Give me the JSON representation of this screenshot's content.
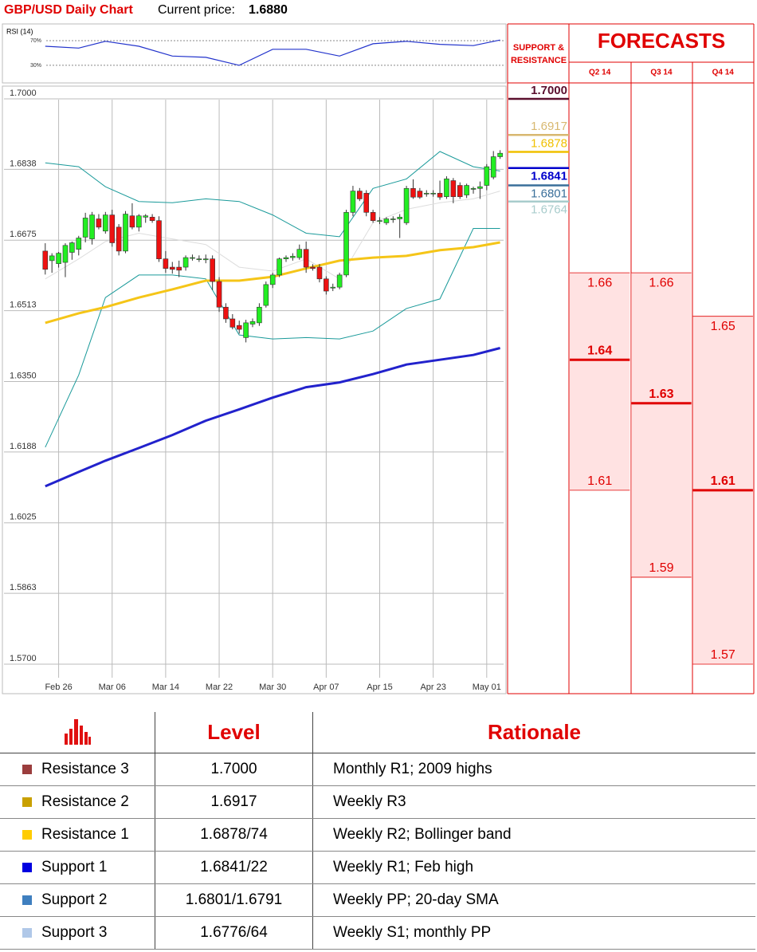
{
  "chart_data": [
    {
      "type": "candlestick",
      "title": "GBP/USD Daily Chart",
      "subtitle": "Current price:",
      "current_price": "1.6880",
      "x": [
        "Feb 24",
        "Feb 25",
        "Feb 26",
        "Feb 27",
        "Feb 28",
        "Mar 01",
        "Mar 02",
        "Mar 03",
        "Mar 04",
        "Mar 05",
        "Mar 06",
        "Mar 07",
        "Mar 08",
        "Mar 09",
        "Mar 10",
        "Mar 11",
        "Mar 12",
        "Mar 13",
        "Mar 14",
        "Mar 15",
        "Mar 16",
        "Mar 17",
        "Mar 18",
        "Mar 19",
        "Mar 20",
        "Mar 21",
        "Mar 22",
        "Mar 23",
        "Mar 24",
        "Mar 25",
        "Mar 26",
        "Mar 27",
        "Mar 28",
        "Mar 29",
        "Mar 30",
        "Mar 31",
        "Apr 01",
        "Apr 02",
        "Apr 03",
        "Apr 04",
        "Apr 05",
        "Apr 06",
        "Apr 07",
        "Apr 08",
        "Apr 09",
        "Apr 10",
        "Apr 11",
        "Apr 12",
        "Apr 13",
        "Apr 14",
        "Apr 15",
        "Apr 16",
        "Apr 17",
        "Apr 18",
        "Apr 19",
        "Apr 20",
        "Apr 21",
        "Apr 22",
        "Apr 23",
        "Apr 24",
        "Apr 25",
        "Apr 26",
        "Apr 27",
        "Apr 28",
        "Apr 29",
        "Apr 30",
        "May 01",
        "May 02",
        "May 03"
      ],
      "open": [
        1.665,
        1.6628,
        1.6621,
        1.6624,
        1.6647,
        1.6654,
        1.6682,
        1.6678,
        1.6724,
        1.6696,
        1.6733,
        1.6705,
        1.665,
        1.6731,
        1.6705,
        1.6728,
        1.6728,
        1.672,
        1.6632,
        1.6613,
        1.6613,
        1.6613,
        1.6635,
        1.6632,
        1.663,
        1.6632,
        1.658,
        1.6521,
        1.6494,
        1.6479,
        1.6451,
        1.6482,
        1.6485,
        1.6525,
        1.6573,
        1.6595,
        1.6632,
        1.6635,
        1.6635,
        1.6654,
        1.6613,
        1.6613,
        1.6586,
        1.6565,
        1.6567,
        1.6595,
        1.6739,
        1.6788,
        1.6783,
        1.6739,
        1.672,
        1.6715,
        1.6724,
        1.6724,
        1.6715,
        1.6794,
        1.6788,
        1.6783,
        1.6783,
        1.6783,
        1.6775,
        1.6812,
        1.6801,
        1.6779,
        1.6792,
        1.6794,
        1.6801,
        1.682,
        1.6867
      ],
      "high": [
        1.6668,
        1.6645,
        1.6648,
        1.6668,
        1.6672,
        1.6685,
        1.6738,
        1.674,
        1.6735,
        1.674,
        1.6745,
        1.6712,
        1.6742,
        1.676,
        1.6735,
        1.6735,
        1.6735,
        1.673,
        1.665,
        1.6625,
        1.6628,
        1.664,
        1.6642,
        1.664,
        1.6642,
        1.664,
        1.659,
        1.653,
        1.6505,
        1.649,
        1.6492,
        1.6495,
        1.653,
        1.658,
        1.66,
        1.6635,
        1.664,
        1.6645,
        1.6665,
        1.6672,
        1.662,
        1.662,
        1.6592,
        1.6575,
        1.66,
        1.6745,
        1.68,
        1.6795,
        1.679,
        1.6745,
        1.6728,
        1.6728,
        1.673,
        1.6735,
        1.68,
        1.6815,
        1.6795,
        1.679,
        1.679,
        1.6812,
        1.6822,
        1.6818,
        1.6808,
        1.6805,
        1.6798,
        1.681,
        1.685,
        1.688,
        1.6882
      ],
      "low": [
        1.6596,
        1.66,
        1.6612,
        1.659,
        1.663,
        1.664,
        1.667,
        1.6665,
        1.67,
        1.669,
        1.666,
        1.664,
        1.6645,
        1.67,
        1.6695,
        1.6715,
        1.6715,
        1.6625,
        1.66,
        1.6598,
        1.659,
        1.6605,
        1.6628,
        1.6625,
        1.6622,
        1.656,
        1.651,
        1.6485,
        1.647,
        1.646,
        1.644,
        1.6475,
        1.6478,
        1.652,
        1.6565,
        1.659,
        1.6625,
        1.6628,
        1.663,
        1.66,
        1.6605,
        1.6578,
        1.655,
        1.6558,
        1.6562,
        1.659,
        1.673,
        1.6765,
        1.673,
        1.6715,
        1.6712,
        1.671,
        1.6715,
        1.668,
        1.671,
        1.677,
        1.677,
        1.6775,
        1.6775,
        1.6768,
        1.677,
        1.676,
        1.677,
        1.6772,
        1.6782,
        1.677,
        1.679,
        1.6815,
        1.6862
      ],
      "close": [
        1.6608,
        1.6639,
        1.6645,
        1.6663,
        1.6669,
        1.668,
        1.6726,
        1.6733,
        1.6705,
        1.6733,
        1.6669,
        1.665,
        1.6735,
        1.6705,
        1.6731,
        1.6731,
        1.672,
        1.6632,
        1.661,
        1.6608,
        1.6606,
        1.6635,
        1.6635,
        1.6632,
        1.6632,
        1.658,
        1.6521,
        1.6494,
        1.6475,
        1.647,
        1.6485,
        1.6488,
        1.6521,
        1.6573,
        1.6595,
        1.6632,
        1.6635,
        1.6638,
        1.6654,
        1.6613,
        1.661,
        1.6586,
        1.6558,
        1.6567,
        1.6595,
        1.6739,
        1.6788,
        1.677,
        1.6739,
        1.672,
        1.672,
        1.6724,
        1.6724,
        1.6728,
        1.6794,
        1.6774,
        1.6774,
        1.6783,
        1.6783,
        1.6774,
        1.6816,
        1.6775,
        1.6775,
        1.6801,
        1.6794,
        1.6798,
        1.6844,
        1.6867,
        1.6875
      ],
      "up_color": "#22ee22",
      "down_color": "#ee1111",
      "series": [
        {
          "color": "#1a9a9a",
          "width": 1,
          "x": [
            "Feb 24",
            "Mar 01",
            "Mar 05",
            "Mar 10",
            "Mar 15",
            "Mar 20",
            "Mar 25",
            "Mar 30",
            "Apr 04",
            "Apr 09",
            "Apr 14",
            "Apr 19",
            "Apr 24",
            "Apr 29",
            "May 03"
          ],
          "values": [
            1.6853,
            1.6844,
            1.6798,
            1.6764,
            1.6761,
            1.677,
            1.6764,
            1.6733,
            1.6691,
            1.6683,
            1.6794,
            1.6816,
            1.6879,
            1.6844,
            1.6834
          ]
        },
        {
          "color": "#1a9a9a",
          "width": 1,
          "x": [
            "Feb 24",
            "Mar 01",
            "Mar 05",
            "Mar 10",
            "Mar 15",
            "Mar 20",
            "Mar 25",
            "Mar 30",
            "Apr 04",
            "Apr 09",
            "Apr 14",
            "Apr 19",
            "Apr 24",
            "Apr 29",
            "May 03"
          ],
          "values": [
            1.6199,
            1.6365,
            1.6543,
            1.6595,
            1.6595,
            1.6586,
            1.6457,
            1.6448,
            1.6451,
            1.6448,
            1.6466,
            1.6518,
            1.654,
            1.6702,
            1.6702
          ]
        },
        {
          "color": "#dddddd",
          "width": 1,
          "x": [
            "Feb 24",
            "Mar 01",
            "Mar 05",
            "Mar 10",
            "Mar 15",
            "Mar 20",
            "Mar 25",
            "Mar 30",
            "Apr 04",
            "Apr 09",
            "Apr 14",
            "Apr 19",
            "Apr 24",
            "Apr 29",
            "May 03"
          ],
          "values": [
            1.6586,
            1.6632,
            1.6672,
            1.6691,
            1.6678,
            1.6665,
            1.6613,
            1.6604,
            1.6632,
            1.6586,
            1.6715,
            1.6746,
            1.6761,
            1.677,
            1.6788
          ]
        },
        {
          "color": "#f5c518",
          "width": 3,
          "x": [
            "Feb 24",
            "Mar 01",
            "Mar 05",
            "Mar 10",
            "Mar 15",
            "Mar 20",
            "Mar 25",
            "Mar 30",
            "Apr 04",
            "Apr 09",
            "Apr 14",
            "Apr 19",
            "Apr 24",
            "Apr 29",
            "May 03"
          ],
          "values": [
            1.6485,
            1.6507,
            1.6521,
            1.6543,
            1.6562,
            1.6582,
            1.6582,
            1.6591,
            1.661,
            1.6628,
            1.6635,
            1.6639,
            1.6652,
            1.6659,
            1.667
          ]
        },
        {
          "color": "#2222cc",
          "width": 3,
          "x": [
            "Feb 24",
            "Mar 01",
            "Mar 05",
            "Mar 10",
            "Mar 15",
            "Mar 20",
            "Mar 25",
            "Mar 30",
            "Apr 04",
            "Apr 09",
            "Apr 14",
            "Apr 19",
            "Apr 24",
            "Apr 29",
            "May 03"
          ],
          "values": [
            1.6109,
            1.6142,
            1.6168,
            1.6197,
            1.6227,
            1.626,
            1.6286,
            1.6313,
            1.6337,
            1.6348,
            1.6367,
            1.6389,
            1.64,
            1.6411,
            1.6427
          ]
        }
      ],
      "xlim": [
        "Feb 22",
        "May 04"
      ],
      "xticks": [
        "Feb 26",
        "Mar 06",
        "Mar 14",
        "Mar 22",
        "Mar 30",
        "Apr 07",
        "Apr 15",
        "Apr 23",
        "May 01"
      ],
      "ylim": [
        1.57,
        1.7
      ],
      "yticks": [
        {
          "value": 1.7,
          "label": "1.7000"
        },
        1.6838,
        1.6675,
        1.6513,
        {
          "value": 1.635,
          "label": "1.6350"
        },
        1.6188,
        1.6025,
        1.5863,
        {
          "value": 1.57,
          "label": "1.5700"
        }
      ],
      "grid": true
    },
    {
      "type": "line",
      "title": "RSI (14)",
      "color": "#2233cc",
      "x": [
        "Feb 24",
        "Mar 01",
        "Mar 05",
        "Mar 10",
        "Mar 15",
        "Mar 20",
        "Mar 25",
        "Mar 30",
        "Apr 04",
        "Apr 09",
        "Apr 14",
        "Apr 19",
        "Apr 24",
        "Apr 29",
        "May 03"
      ],
      "values": [
        61,
        58,
        69,
        61,
        45,
        43,
        30,
        56,
        56,
        45,
        65,
        69,
        64,
        62,
        71
      ],
      "xlim": [
        "Feb 22",
        "May 04"
      ],
      "ylim": [
        4,
        92
      ],
      "yticks": [
        {
          "value": 70,
          "label": "70%"
        },
        {
          "value": 30,
          "label": "30%"
        }
      ]
    },
    {
      "type": "range",
      "title": "FORECASTS",
      "categories": [
        "Q2 14",
        "Q3 14",
        "Q4 14"
      ],
      "high": [
        1.66,
        1.66,
        1.65
      ],
      "values": [
        1.64,
        1.63,
        1.61
      ],
      "low": [
        1.61,
        1.59,
        1.57
      ],
      "ylim": [
        1.57,
        1.7
      ],
      "color": "#ffe2e2",
      "line_color": "#e00000"
    },
    {
      "type": "levels",
      "title": "SUPPORT & RESISTANCE",
      "values": [
        1.7,
        1.6917,
        1.6878,
        1.6841,
        1.6801,
        1.6764
      ],
      "value_labels": [
        "1.7000",
        "1.6917",
        "1.6878",
        "1.6841",
        "1.6801",
        "1.6764"
      ],
      "colors": [
        "#5a0f2e",
        "#d8b870",
        "#f0c000",
        "#0000cc",
        "#3a6f9a",
        "#a8cccc"
      ],
      "ylim": [
        1.57,
        1.7
      ]
    }
  ],
  "table": {
    "header": [
      "Level",
      "Rationale"
    ],
    "rows": [
      {
        "name": "Resistance 3",
        "color": "#9b3d3d",
        "level": "1.7000",
        "rationale": "Monthly R1; 2009 highs"
      },
      {
        "name": "Resistance 2",
        "color": "#c9a000",
        "level": "1.6917",
        "rationale": "Weekly R3"
      },
      {
        "name": "Resistance 1",
        "color": "#ffcc00",
        "level": "1.6878/74",
        "rationale": "Weekly R2; Bollinger band"
      },
      {
        "name": "Support 1",
        "color": "#0000e0",
        "level": "1.6841/22",
        "rationale": "Weekly R1; Feb high"
      },
      {
        "name": "Support 2",
        "color": "#3f7fbf",
        "level": "1.6801/1.6791",
        "rationale": "Weekly PP; 20-day SMA"
      },
      {
        "name": "Support 3",
        "color": "#b0c8e8",
        "level": "1.6776/64",
        "rationale": "Weekly S1; monthly PP"
      }
    ]
  }
}
